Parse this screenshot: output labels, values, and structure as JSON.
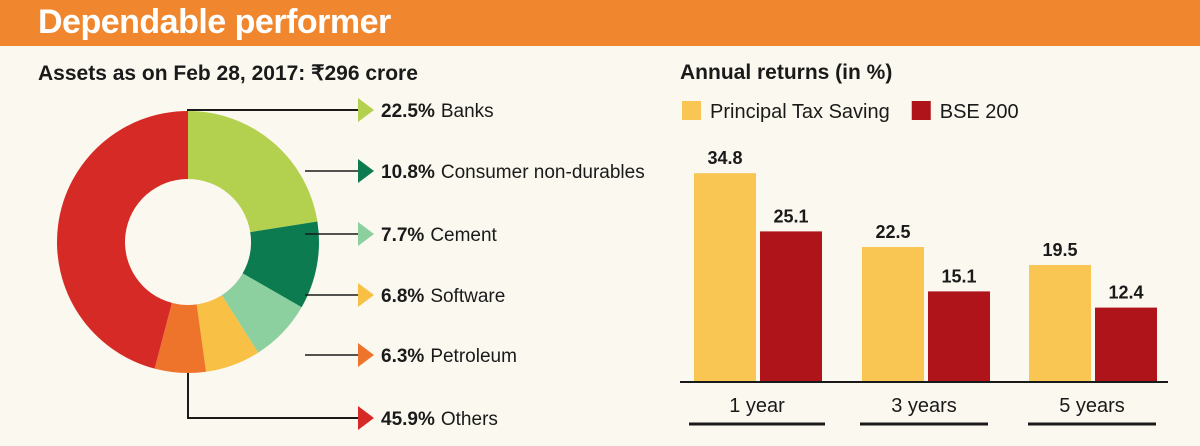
{
  "header": {
    "title": "Dependable performer"
  },
  "chart_data": [
    {
      "type": "pie",
      "title": "Assets as on Feb 28, 2017: ₹296 crore",
      "donut": true,
      "slices": [
        {
          "label": "Banks",
          "value": 22.5,
          "value_label": "22.5%",
          "color": "#b3d14e"
        },
        {
          "label": "Consumer non-durables",
          "value": 10.8,
          "value_label": "10.8%",
          "color": "#0d7b50"
        },
        {
          "label": "Cement",
          "value": 7.7,
          "value_label": "7.7%",
          "color": "#8dd09f"
        },
        {
          "label": "Software",
          "value": 6.8,
          "value_label": "6.8%",
          "color": "#f8c044"
        },
        {
          "label": "Petroleum",
          "value": 6.3,
          "value_label": "6.3%",
          "color": "#ef742b"
        },
        {
          "label": "Others",
          "value": 45.9,
          "value_label": "45.9%",
          "color": "#d62a26"
        }
      ]
    },
    {
      "type": "bar",
      "title": "Annual returns (in %)",
      "categories": [
        "1 year",
        "3 years",
        "5 years"
      ],
      "series": [
        {
          "name": "Principal Tax Saving",
          "values": [
            34.8,
            22.5,
            19.5
          ],
          "color": "#f9c553"
        },
        {
          "name": "BSE 200",
          "values": [
            25.1,
            15.1,
            12.4
          ],
          "color": "#b0141b"
        }
      ],
      "ylim": [
        0,
        35
      ],
      "legend": "top"
    }
  ]
}
